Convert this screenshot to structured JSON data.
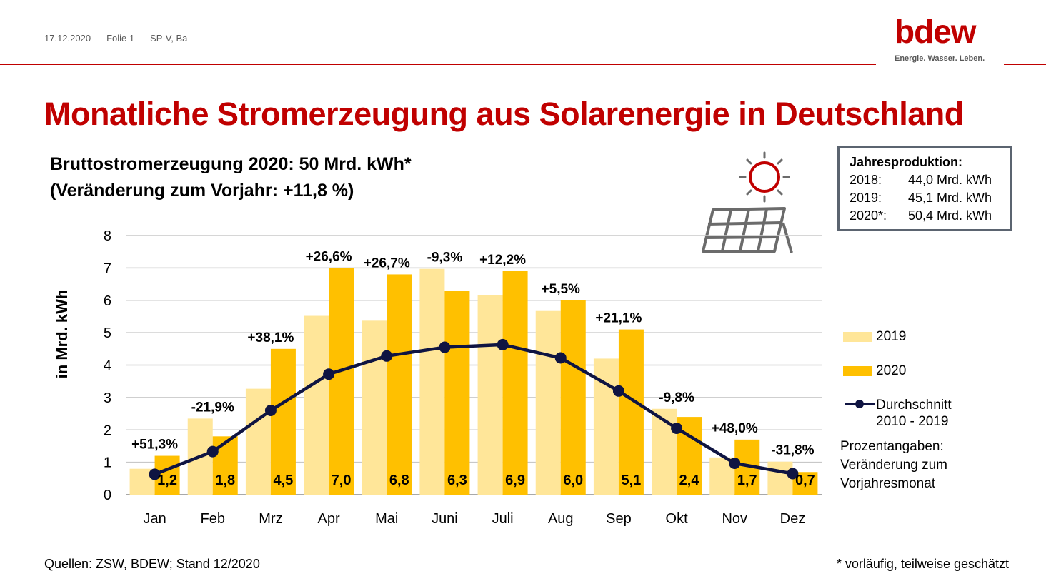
{
  "header": {
    "date": "17.12.2020",
    "slide": "Folie 1",
    "author": "SP-V, Ba"
  },
  "logo": {
    "word": "bdew",
    "tagline": "Energie. Wasser. Leben."
  },
  "title": "Monatliche Stromerzeugung aus Solarenergie in Deutschland",
  "subtitle_line1": "Bruttostromerzeugung 2020: 50 Mrd. kWh*",
  "subtitle_line2": "(Veränderung zum Vorjahr: +11,8 %)",
  "infobox": {
    "heading": "Jahresproduktion:",
    "rows": [
      {
        "year": "2018:",
        "value": "44,0 Mrd. kWh"
      },
      {
        "year": "2019:",
        "value": "45,1 Mrd. kWh"
      },
      {
        "year": "2020*:",
        "value": "50,4 Mrd. kWh"
      }
    ]
  },
  "legend": {
    "s2019": "2019",
    "s2020": "2020",
    "avg_line1": "Durchschnitt",
    "avg_line2": "2010 - 2019"
  },
  "note": [
    "Prozentangaben:",
    "Veränderung zum",
    "Vorjahresmonat"
  ],
  "source": "Quellen: ZSW, BDEW; Stand 12/2020",
  "footnote": "* vorläufig, teilweise geschätzt",
  "colors": {
    "accent": "#c00000",
    "s2019": "#ffe699",
    "s2020": "#ffc000",
    "avg": "#0f1442"
  },
  "icons": {
    "sun": "sun-icon",
    "panel": "solar-panel-icon"
  },
  "chart_data": {
    "type": "bar",
    "categories": [
      "Jan",
      "Feb",
      "Mrz",
      "Apr",
      "Mai",
      "Juni",
      "Juli",
      "Aug",
      "Sep",
      "Okt",
      "Nov",
      "Dez"
    ],
    "ylabel": "in Mrd. kWh",
    "ylim": [
      0,
      8
    ],
    "yticks": [
      0,
      1,
      2,
      3,
      4,
      5,
      6,
      7,
      8
    ],
    "grid": true,
    "series": [
      {
        "name": "2019",
        "type": "bar",
        "values": [
          0.8,
          2.35,
          3.27,
          5.52,
          5.37,
          6.97,
          6.17,
          5.67,
          4.2,
          2.65,
          1.15,
          1.02
        ]
      },
      {
        "name": "2020",
        "type": "bar",
        "values": [
          1.2,
          1.8,
          4.5,
          7.0,
          6.8,
          6.3,
          6.9,
          6.0,
          5.1,
          2.4,
          1.7,
          0.7
        ],
        "labels": [
          "1,2",
          "1,8",
          "4,5",
          "7,0",
          "6,8",
          "6,3",
          "6,9",
          "6,0",
          "5,1",
          "2,4",
          "1,7",
          "0,7"
        ]
      },
      {
        "name": "Durchschnitt 2010 - 2019",
        "type": "line",
        "values": [
          0.63,
          1.33,
          2.6,
          3.72,
          4.28,
          4.55,
          4.63,
          4.22,
          3.2,
          2.05,
          0.97,
          0.65
        ]
      }
    ],
    "changes": [
      "+51,3%",
      "-21,9%",
      "+38,1%",
      "+26,6%",
      "+26,7%",
      "-9,3%",
      "+12,2%",
      "+5,5%",
      "+21,1%",
      "-9,8%",
      "+48,0%",
      "-31,8%"
    ]
  }
}
